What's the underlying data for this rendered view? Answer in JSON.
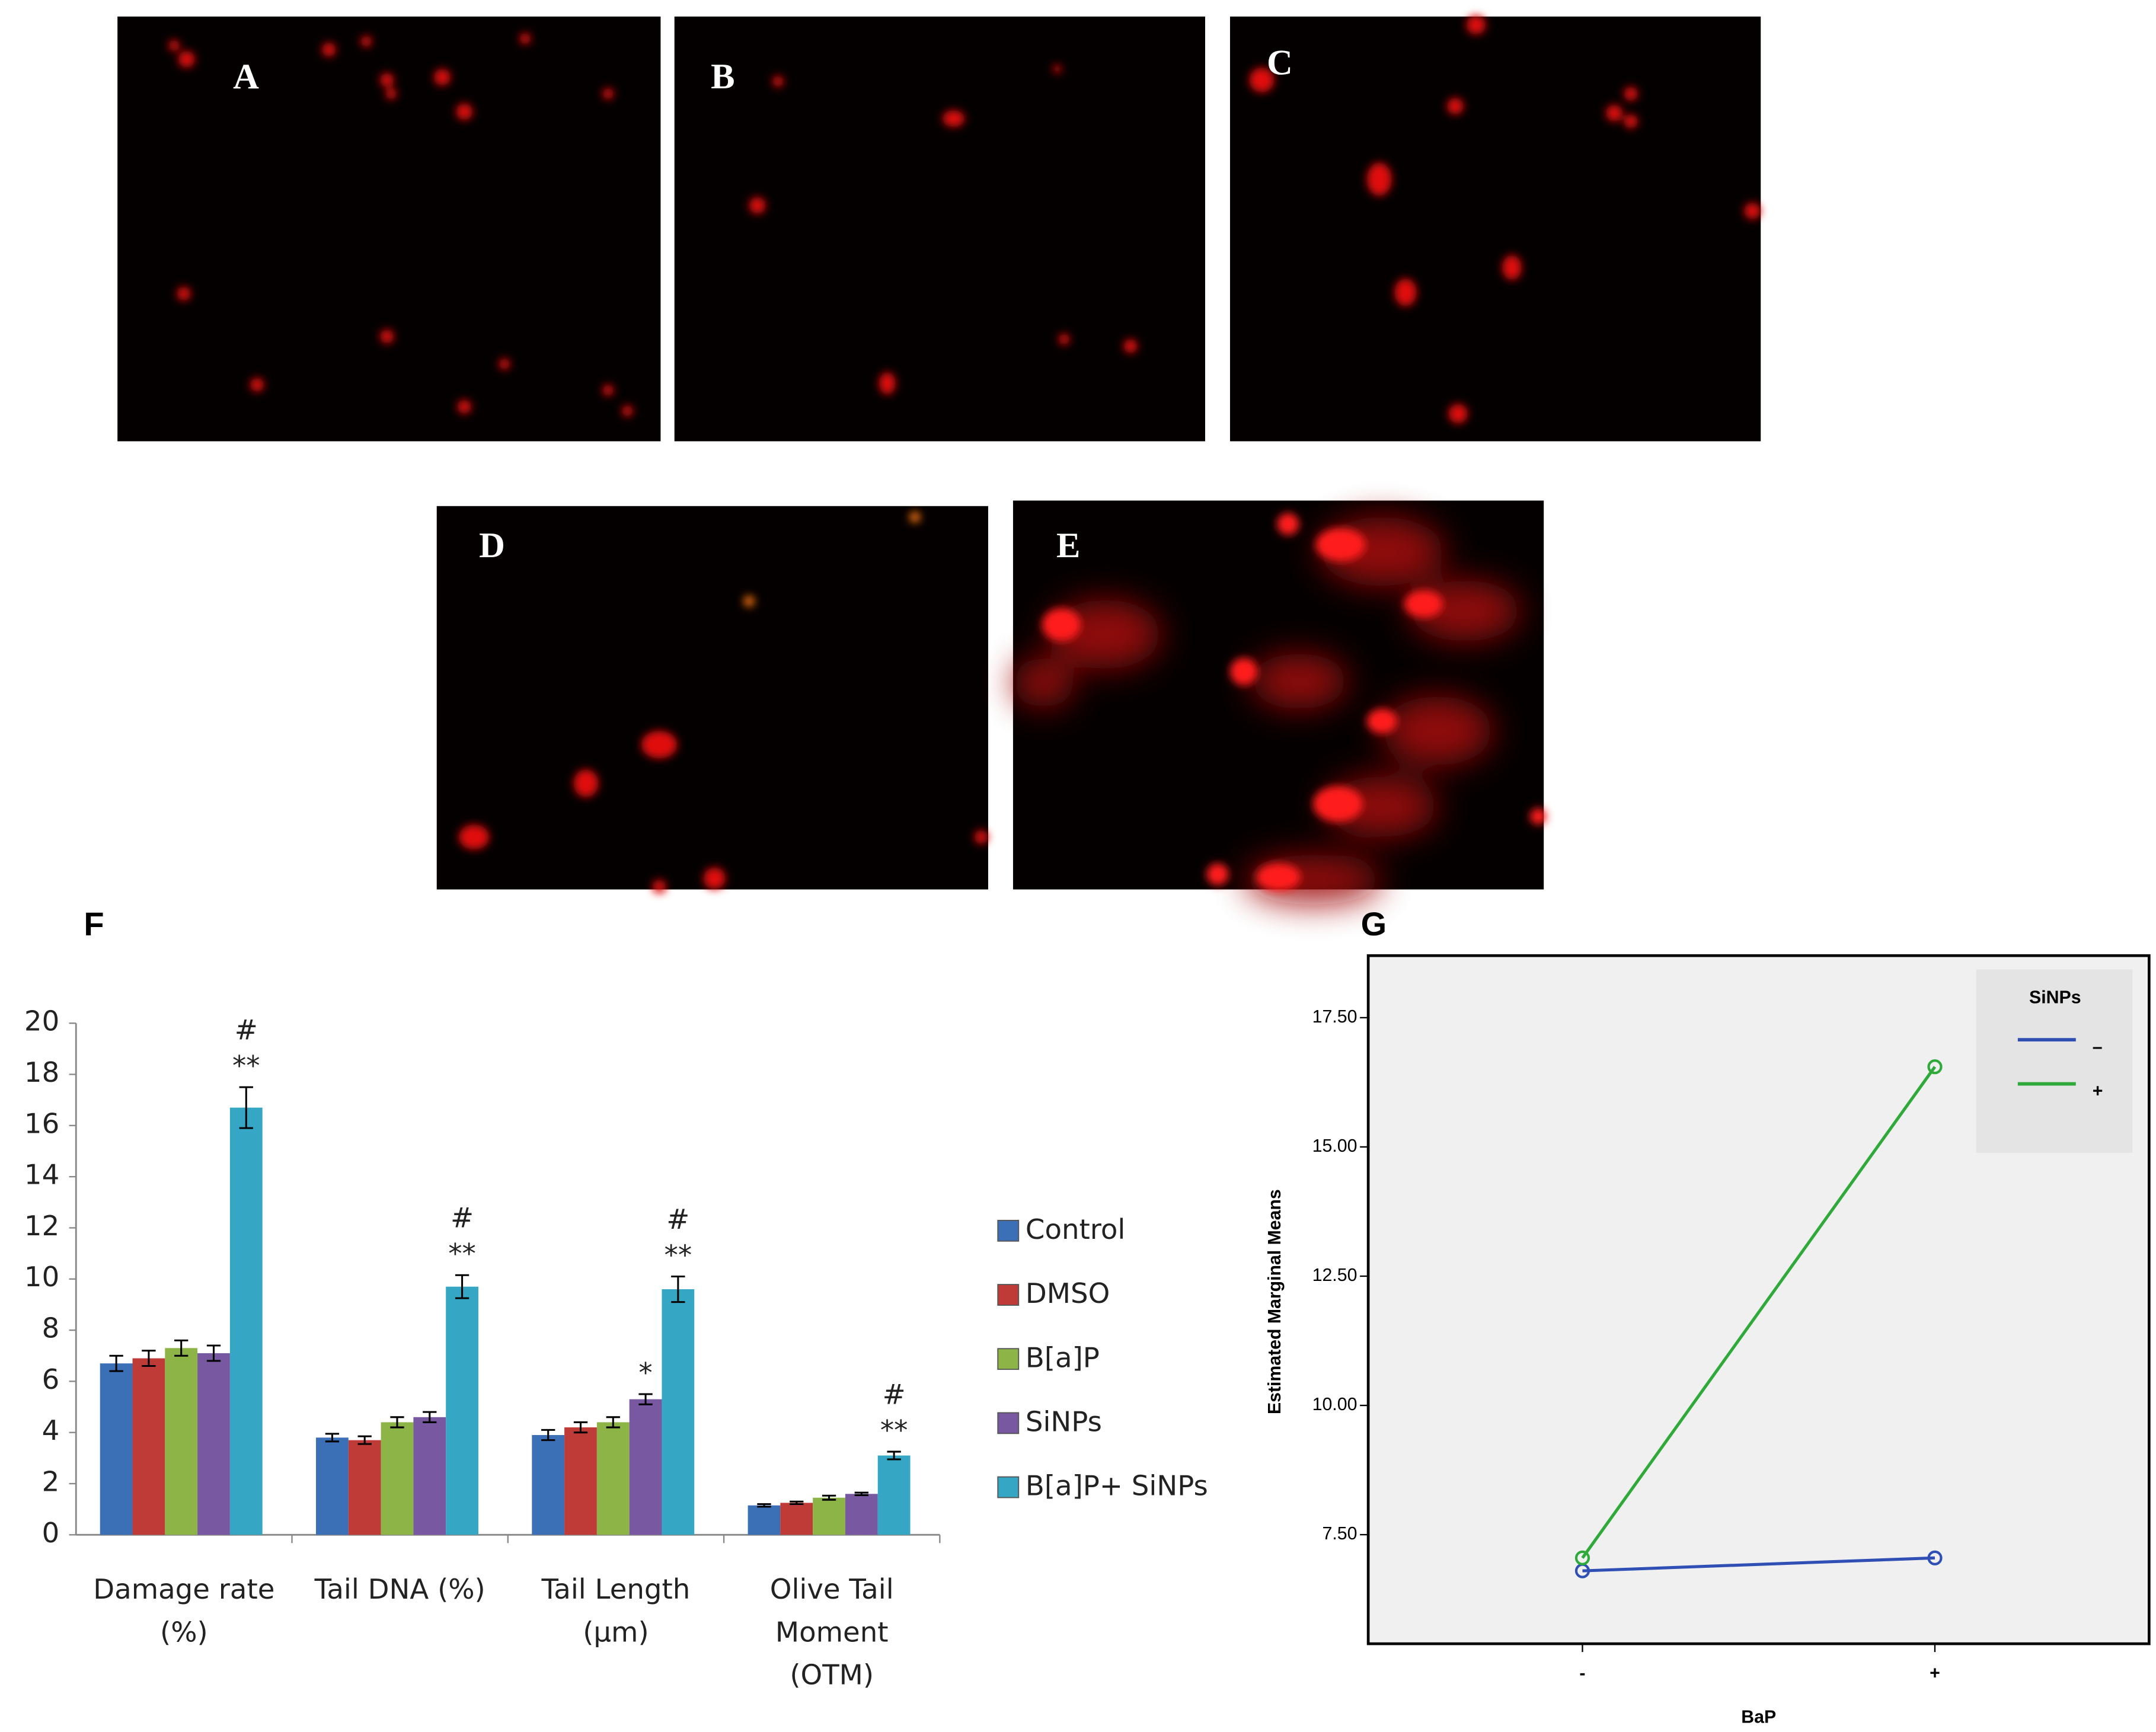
{
  "panel_labels": [
    "A",
    "B",
    "C",
    "D",
    "E"
  ],
  "chart_data": [
    {
      "type": "bar",
      "panel_label": "F",
      "categories": [
        [
          "Damage rate",
          "(%)"
        ],
        [
          "Tail DNA (%)"
        ],
        [
          "Tail Length",
          "(μm)"
        ],
        [
          "Olive Tail",
          "Moment",
          "(OTM)"
        ]
      ],
      "ylim": [
        0,
        20
      ],
      "yticks": [
        0,
        2,
        4,
        6,
        8,
        10,
        12,
        14,
        16,
        18,
        20
      ],
      "series": [
        {
          "name": "Control",
          "color": "#3b6fb6",
          "values": [
            6.7,
            3.8,
            3.9,
            1.15
          ],
          "errors": [
            0.3,
            0.15,
            0.2,
            0.05
          ],
          "annotations": [
            [],
            [],
            [],
            []
          ]
        },
        {
          "name": "DMSO",
          "color": "#bf3b37",
          "values": [
            6.9,
            3.7,
            4.2,
            1.25
          ],
          "errors": [
            0.3,
            0.15,
            0.2,
            0.05
          ],
          "annotations": [
            [],
            [],
            [],
            []
          ]
        },
        {
          "name": "B[a]P",
          "color": "#8db446",
          "values": [
            7.3,
            4.4,
            4.4,
            1.45
          ],
          "errors": [
            0.3,
            0.2,
            0.2,
            0.08
          ],
          "annotations": [
            [],
            [],
            [],
            []
          ]
        },
        {
          "name": "SiNPs",
          "color": "#7758a1",
          "values": [
            7.1,
            4.6,
            5.3,
            1.6
          ],
          "errors": [
            0.3,
            0.2,
            0.2,
            0.05
          ],
          "annotations": [
            [],
            [],
            [
              "*"
            ],
            []
          ]
        },
        {
          "name": "B[a]P+ SiNPs",
          "color": "#35a7c4",
          "values": [
            16.7,
            9.7,
            9.6,
            3.1
          ],
          "errors": [
            0.8,
            0.45,
            0.5,
            0.15
          ],
          "annotations": [
            [
              "#",
              "**"
            ],
            [
              "#",
              "**"
            ],
            [
              "#",
              "**"
            ],
            [
              "#",
              "**"
            ]
          ]
        }
      ]
    },
    {
      "type": "line",
      "panel_label": "G",
      "categories": [
        "-",
        "+"
      ],
      "x_label": "BaP",
      "y_label": "Estimated Marginal Means",
      "ylim": [
        5.39,
        18.7
      ],
      "yticks": [
        {
          "value": 7.5,
          "label": "7.50"
        },
        {
          "value": 10,
          "label": "10.00"
        },
        {
          "value": 12.5,
          "label": "12.50"
        },
        {
          "value": 15,
          "label": "15.00"
        },
        {
          "value": 17.5,
          "label": "17.50"
        }
      ],
      "legend_title": "SiNPs",
      "legend": "upper right",
      "series": [
        {
          "name": "–",
          "color": "#2f4fb5",
          "values": [
            6.8,
            7.05
          ]
        },
        {
          "name": "+",
          "color": "#2faa3a",
          "values": [
            7.05,
            16.55
          ]
        }
      ]
    }
  ]
}
